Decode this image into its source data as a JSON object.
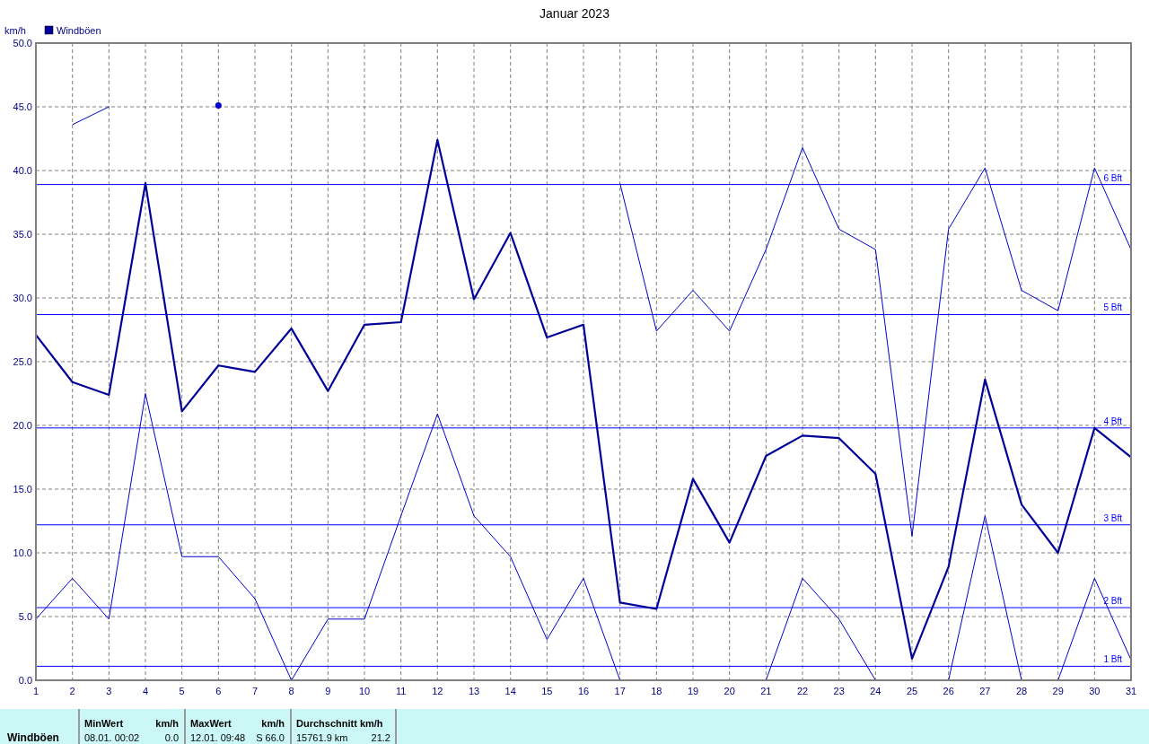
{
  "chart_data": {
    "type": "line",
    "title": "Januar 2023",
    "ylabel": "km/h",
    "x": [
      1,
      2,
      3,
      4,
      5,
      6,
      7,
      8,
      9,
      10,
      11,
      12,
      13,
      14,
      15,
      16,
      17,
      18,
      19,
      20,
      21,
      22,
      23,
      24,
      25,
      26,
      27,
      28,
      29,
      30,
      31
    ],
    "series": [
      {
        "color": "#0000cc",
        "values": [
          null,
          43.6,
          45.0,
          null,
          null,
          45.1,
          null,
          null,
          null,
          null,
          null,
          null,
          null,
          null,
          null,
          null,
          39.0,
          27.4,
          30.6,
          27.4,
          33.8,
          41.8,
          35.4,
          33.8,
          11.3,
          35.4,
          40.2,
          30.6,
          29.0,
          40.2,
          33.8
        ]
      },
      {
        "name": "Windböen",
        "color": "#000099",
        "values": [
          27.1,
          23.4,
          22.4,
          39.0,
          21.1,
          24.7,
          24.2,
          27.6,
          22.7,
          27.9,
          28.1,
          42.4,
          29.9,
          35.1,
          26.9,
          27.9,
          6.1,
          5.6,
          15.8,
          10.8,
          17.6,
          19.2,
          19.0,
          16.2,
          1.7,
          8.9,
          23.6,
          13.8,
          10.0,
          19.8,
          17.5
        ]
      },
      {
        "color": "#0000cc",
        "values": [
          4.8,
          8.0,
          4.8,
          22.5,
          9.7,
          9.7,
          6.4,
          0,
          4.8,
          4.8,
          12.9,
          20.9,
          12.9,
          9.7,
          3.2,
          8.0,
          0,
          null,
          null,
          null,
          0,
          8.0,
          4.8,
          0,
          null,
          0,
          12.9,
          0,
          0,
          8.0,
          1.6
        ]
      }
    ],
    "xlim": [
      1,
      31
    ],
    "xticks": [
      1,
      2,
      3,
      4,
      5,
      6,
      7,
      8,
      9,
      10,
      11,
      12,
      13,
      14,
      15,
      16,
      17,
      18,
      19,
      20,
      21,
      22,
      23,
      24,
      25,
      26,
      27,
      28,
      29,
      30,
      31
    ],
    "ylim": [
      0,
      50
    ],
    "yticks": [
      {
        "value": 0,
        "label": "0.0"
      },
      {
        "value": 5,
        "label": "5.0"
      },
      {
        "value": 10,
        "label": "10.0"
      },
      {
        "value": 15,
        "label": "15.0"
      },
      {
        "value": 20,
        "label": "20.0"
      },
      {
        "value": 25,
        "label": "25.0"
      },
      {
        "value": 30,
        "label": "30.0"
      },
      {
        "value": 35,
        "label": "35.0"
      },
      {
        "value": 40,
        "label": "40.0"
      },
      {
        "value": 45,
        "label": "45.0"
      },
      {
        "value": 50,
        "label": "50.0"
      }
    ],
    "grid": true,
    "legend": "top left",
    "ref_lines": [
      {
        "axis": "y",
        "value": 1.1,
        "label": "1 Bft",
        "color": "#0000ff"
      },
      {
        "axis": "y",
        "value": 5.7,
        "label": "2 Bft",
        "color": "#0000ff"
      },
      {
        "axis": "y",
        "value": 12.2,
        "label": "3 Bft",
        "color": "#0000ff"
      },
      {
        "axis": "y",
        "value": 19.8,
        "label": "4 Bft",
        "color": "#0000ff"
      },
      {
        "axis": "y",
        "value": 28.7,
        "label": "5 Bft",
        "color": "#0000ff"
      },
      {
        "axis": "y",
        "value": 38.9,
        "label": "6 Bft",
        "color": "#0000ff"
      }
    ],
    "annotations": [
      "Windböen",
      "MinWert",
      "km/h",
      "08.01.  00:02",
      "0.0",
      "MaxWert",
      "km/h",
      "12.01.  09:48",
      "S 66.0",
      "Durchschnitt km/h",
      "15761.9 km",
      "21.2"
    ]
  }
}
